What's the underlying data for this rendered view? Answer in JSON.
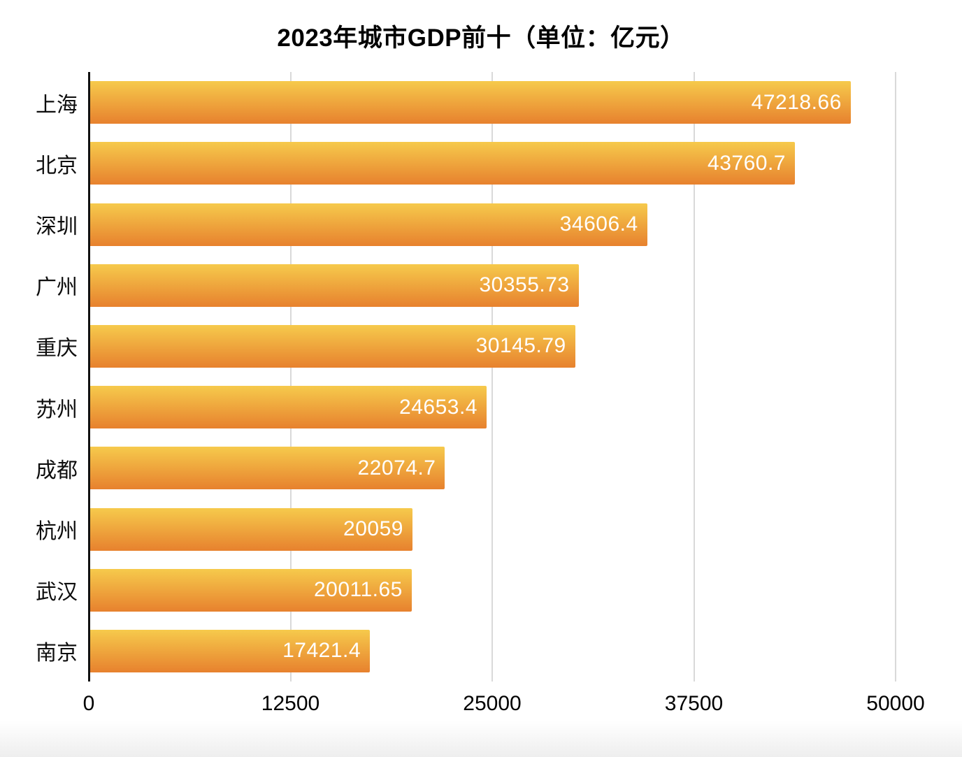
{
  "chart_data": {
    "type": "bar",
    "orientation": "horizontal",
    "title": "2023年城市GDP前十（单位：亿元）",
    "categories": [
      "上海",
      "北京",
      "深圳",
      "广州",
      "重庆",
      "苏州",
      "成都",
      "杭州",
      "武汉",
      "南京"
    ],
    "values": [
      47218.66,
      43760.7,
      34606.4,
      30355.73,
      30145.79,
      24653.4,
      22074.7,
      20059,
      20011.65,
      17421.4
    ],
    "value_labels": [
      "47218.66",
      "43760.7",
      "34606.4",
      "30355.73",
      "30145.79",
      "24653.4",
      "22074.7",
      "20059",
      "20011.65",
      "17421.4"
    ],
    "xlabel": "",
    "ylabel": "",
    "xlim": [
      0,
      50000
    ],
    "xticks": [
      0,
      12500,
      25000,
      37500,
      50000
    ],
    "xtick_labels": [
      "0",
      "12500",
      "25000",
      "37500",
      "50000"
    ],
    "grid": "vertical",
    "legend": "none",
    "colors": {
      "bar_gradient_top": "#F6CA4C",
      "bar_gradient_bottom": "#E7812E",
      "value_label": "#FFFFFF",
      "gridline": "#D9D9D9",
      "axis_line": "#111111",
      "title_text": "#000000",
      "category_text": "#0D0D0D",
      "tick_text": "#000000"
    }
  }
}
